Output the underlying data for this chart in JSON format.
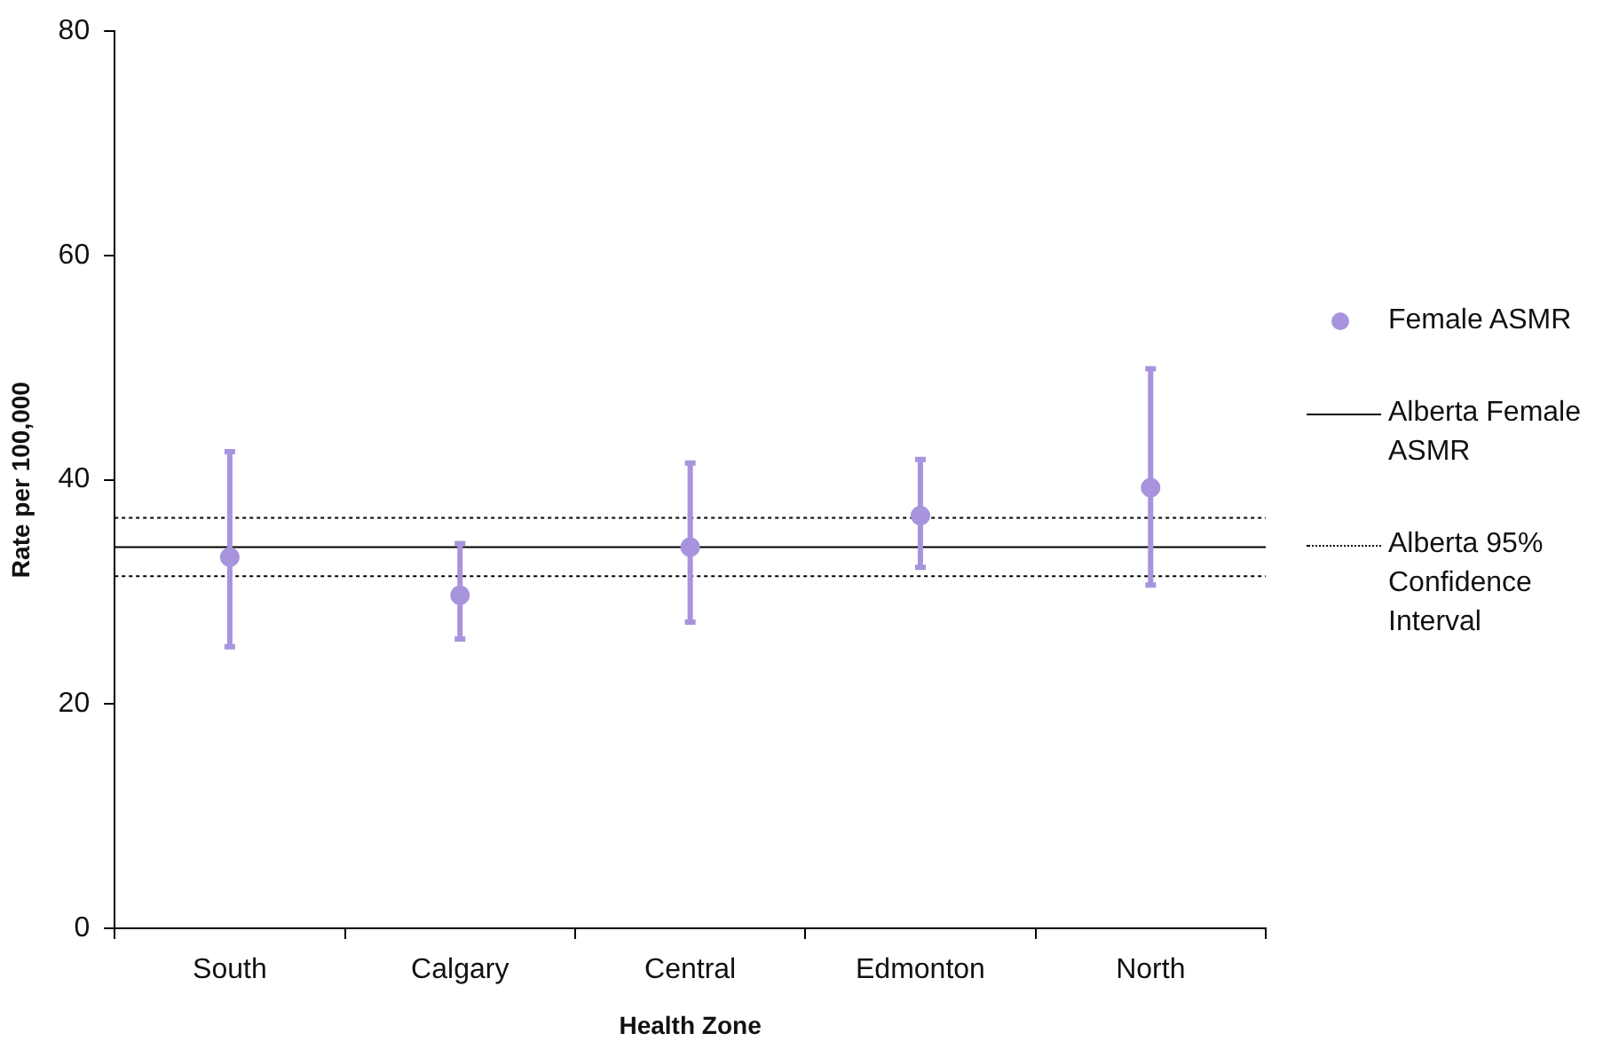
{
  "chart_data": {
    "type": "scatter",
    "xlabel": "Health Zone",
    "ylabel": "Rate per 100,000",
    "categories": [
      "South",
      "Calgary",
      "Central",
      "Edmonton",
      "North"
    ],
    "series": [
      {
        "name": "Female ASMR",
        "color": "#a794dc",
        "values": [
          33.1,
          29.7,
          34.0,
          36.8,
          39.3
        ],
        "errors": [
          [
            25.1,
            42.5
          ],
          [
            25.8,
            34.3
          ],
          [
            27.3,
            41.5
          ],
          [
            32.2,
            41.8
          ],
          [
            30.6,
            49.9
          ]
        ]
      }
    ],
    "ref_lines": [
      {
        "axis": "y",
        "value": 34.0,
        "label": "Alberta Female ASMR",
        "color": "#000000",
        "line_style": "solid"
      },
      {
        "axis": "y",
        "value": 36.6,
        "label": "Alberta 95% Confidence Interval",
        "color": "#000000",
        "line_style": "dotted"
      },
      {
        "axis": "y",
        "value": 31.4,
        "label": null,
        "color": "#000000",
        "line_style": "dotted"
      }
    ],
    "ylim": [
      0,
      80
    ],
    "yticks": [
      0,
      20,
      40,
      60,
      80
    ],
    "grid": false,
    "legend": "right",
    "marker": "circle"
  }
}
